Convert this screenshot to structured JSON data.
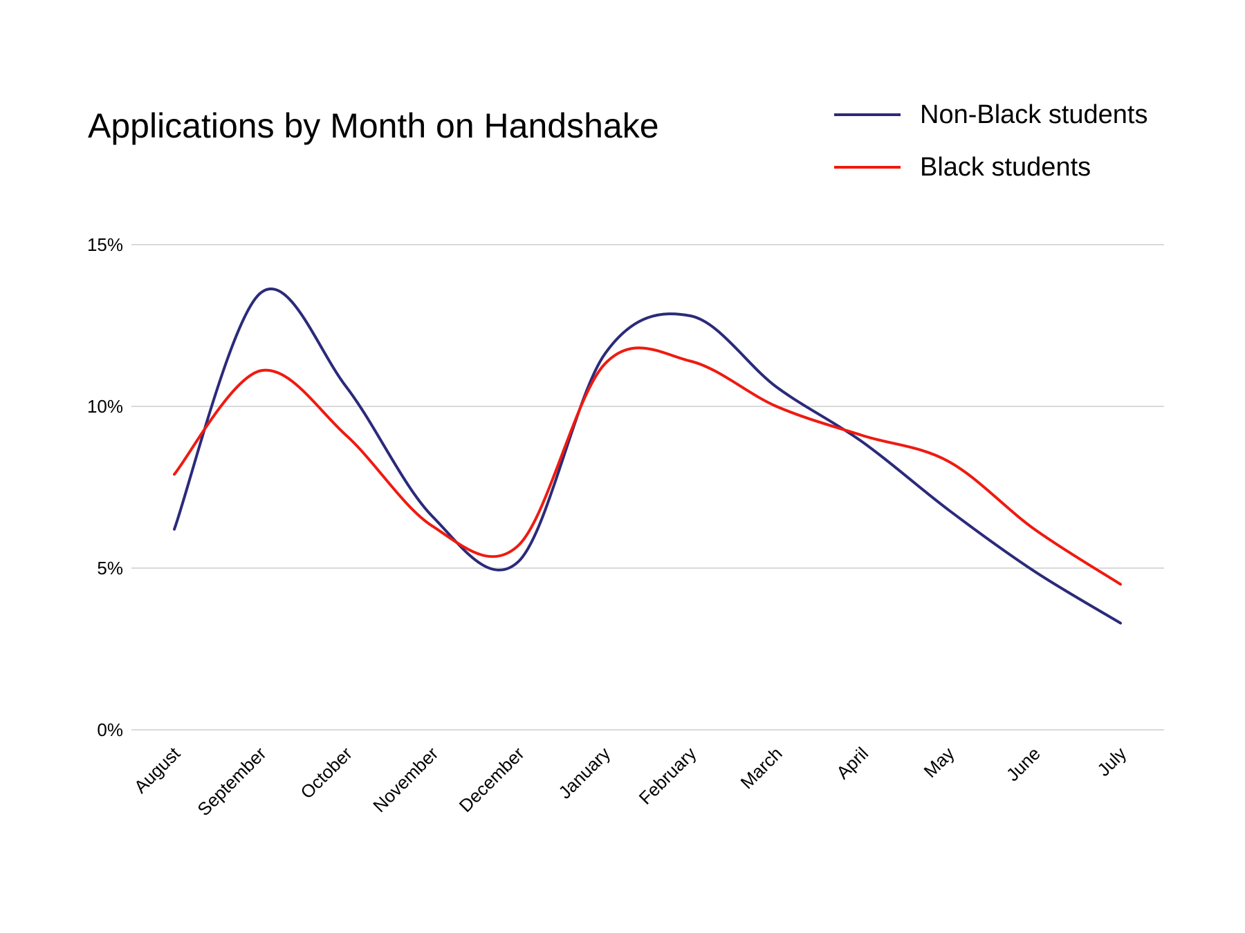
{
  "chart_data": {
    "type": "line",
    "title": "Applications by Month on Handshake",
    "xlabel": "",
    "ylabel": "",
    "categories": [
      "August",
      "September",
      "October",
      "November",
      "December",
      "January",
      "February",
      "March",
      "April",
      "May",
      "June",
      "July"
    ],
    "y_ticks": [
      "0%",
      "5%",
      "10%",
      "15%"
    ],
    "y_tick_values": [
      0,
      5,
      10,
      15
    ],
    "ylim": [
      0,
      15
    ],
    "grid": true,
    "legend_position": "top-right",
    "series": [
      {
        "name": "Non-Black students",
        "color": "#2b2a7a",
        "values": [
          6.2,
          13.5,
          10.6,
          6.6,
          5.2,
          11.6,
          12.8,
          10.6,
          8.9,
          6.8,
          4.9,
          3.3
        ]
      },
      {
        "name": "Black students",
        "color": "#ef1a10",
        "values": [
          7.9,
          11.1,
          9.1,
          6.3,
          5.7,
          11.3,
          11.4,
          10.0,
          9.1,
          8.3,
          6.2,
          4.5
        ]
      }
    ]
  }
}
